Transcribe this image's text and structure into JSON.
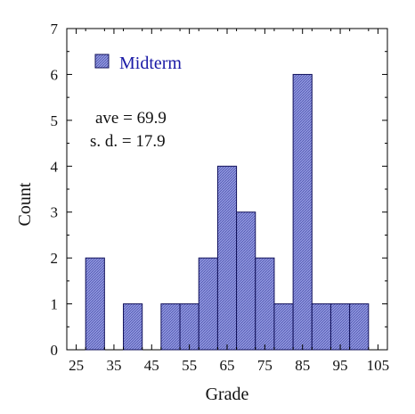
{
  "chart_data": {
    "type": "bar",
    "variant": "histogram",
    "bin_width": 5,
    "bins": [
      {
        "start": 27.5,
        "end": 32.5,
        "count": 2
      },
      {
        "start": 32.5,
        "end": 37.5,
        "count": 0
      },
      {
        "start": 37.5,
        "end": 42.5,
        "count": 1
      },
      {
        "start": 42.5,
        "end": 47.5,
        "count": 0
      },
      {
        "start": 47.5,
        "end": 52.5,
        "count": 1
      },
      {
        "start": 52.5,
        "end": 57.5,
        "count": 1
      },
      {
        "start": 57.5,
        "end": 62.5,
        "count": 2
      },
      {
        "start": 62.5,
        "end": 67.5,
        "count": 4
      },
      {
        "start": 67.5,
        "end": 72.5,
        "count": 3
      },
      {
        "start": 72.5,
        "end": 77.5,
        "count": 2
      },
      {
        "start": 77.5,
        "end": 82.5,
        "count": 1
      },
      {
        "start": 82.5,
        "end": 87.5,
        "count": 6
      },
      {
        "start": 87.5,
        "end": 92.5,
        "count": 1
      },
      {
        "start": 92.5,
        "end": 97.5,
        "count": 1
      },
      {
        "start": 97.5,
        "end": 102.5,
        "count": 1
      }
    ],
    "xlabel": "Grade",
    "ylabel": "Count",
    "xlim": [
      22.5,
      107.5
    ],
    "ylim": [
      0,
      7
    ],
    "xticks": [
      25,
      35,
      45,
      55,
      65,
      75,
      85,
      95,
      105
    ],
    "yticks": [
      0,
      1,
      2,
      3,
      4,
      5,
      6,
      7
    ],
    "legend": {
      "label": "Midterm",
      "placement": "top-left"
    },
    "annotations": {
      "ave": "ave = 69.9",
      "sd": "s. d. = 17.9"
    },
    "grid": false,
    "colors": {
      "bar_fill": "#8f96de",
      "bar_edge": "#10105a",
      "legend_text": "#1a1aa6"
    }
  }
}
